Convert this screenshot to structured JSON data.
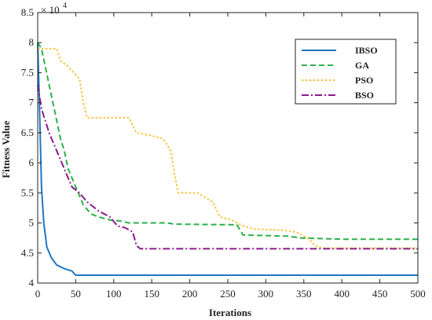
{
  "chart_data": {
    "type": "line",
    "xlabel": "Iterations",
    "ylabel": "Fitness Value",
    "y_multiplier_label": "× 10",
    "y_multiplier_exp": "4",
    "xlim": [
      0,
      500
    ],
    "ylim": [
      4,
      8.5
    ],
    "x_ticks": [
      0,
      50,
      100,
      150,
      200,
      250,
      300,
      350,
      400,
      450,
      500
    ],
    "x_tick_labels": [
      "0",
      "50",
      "100",
      "150",
      "200",
      "250",
      "300",
      "350",
      "400",
      "450",
      "500"
    ],
    "y_ticks": [
      4,
      4.5,
      5,
      5.5,
      6,
      6.5,
      7,
      7.5,
      8,
      8.5
    ],
    "y_tick_labels": [
      "4",
      "4.5",
      "5",
      "5.5",
      "6",
      "6.5",
      "7",
      "7.5",
      "8",
      "8.5"
    ],
    "legend_position": "top-right",
    "grid": false,
    "series": [
      {
        "name": "IBSO",
        "color": "#1f77c0",
        "dash": "solid",
        "points": [
          [
            0,
            8.0
          ],
          [
            2,
            7.1
          ],
          [
            5,
            5.6
          ],
          [
            8,
            5.0
          ],
          [
            12,
            4.6
          ],
          [
            18,
            4.42
          ],
          [
            25,
            4.3
          ],
          [
            35,
            4.24
          ],
          [
            45,
            4.2
          ],
          [
            50,
            4.13
          ],
          [
            500,
            4.13
          ]
        ]
      },
      {
        "name": "GA",
        "color": "#2bb14a",
        "dash": "dashed",
        "points": [
          [
            0,
            8.0
          ],
          [
            5,
            7.9
          ],
          [
            10,
            7.6
          ],
          [
            20,
            7.0
          ],
          [
            30,
            6.4
          ],
          [
            35,
            6.2
          ],
          [
            40,
            5.9
          ],
          [
            50,
            5.6
          ],
          [
            60,
            5.3
          ],
          [
            70,
            5.15
          ],
          [
            80,
            5.1
          ],
          [
            95,
            5.05
          ],
          [
            110,
            5.03
          ],
          [
            120,
            5.0
          ],
          [
            170,
            5.0
          ],
          [
            180,
            4.98
          ],
          [
            255,
            4.97
          ],
          [
            262,
            4.97
          ],
          [
            270,
            4.8
          ],
          [
            330,
            4.78
          ],
          [
            345,
            4.75
          ],
          [
            400,
            4.73
          ],
          [
            500,
            4.73
          ]
        ]
      },
      {
        "name": "PSO",
        "color": "#f5c542",
        "dash": "dotted",
        "points": [
          [
            0,
            7.9
          ],
          [
            25,
            7.9
          ],
          [
            30,
            7.7
          ],
          [
            40,
            7.6
          ],
          [
            55,
            7.4
          ],
          [
            60,
            7.0
          ],
          [
            65,
            6.75
          ],
          [
            120,
            6.75
          ],
          [
            130,
            6.5
          ],
          [
            150,
            6.45
          ],
          [
            165,
            6.4
          ],
          [
            175,
            6.2
          ],
          [
            180,
            5.8
          ],
          [
            185,
            5.5
          ],
          [
            210,
            5.5
          ],
          [
            230,
            5.35
          ],
          [
            240,
            5.1
          ],
          [
            255,
            5.05
          ],
          [
            270,
            4.95
          ],
          [
            285,
            4.9
          ],
          [
            320,
            4.88
          ],
          [
            340,
            4.85
          ],
          [
            355,
            4.75
          ],
          [
            365,
            4.62
          ],
          [
            375,
            4.58
          ],
          [
            500,
            4.58
          ]
        ]
      },
      {
        "name": "BSO",
        "color": "#8b1a8b",
        "dash": "dashdot",
        "points": [
          [
            0,
            7.3
          ],
          [
            5,
            6.9
          ],
          [
            15,
            6.5
          ],
          [
            25,
            6.2
          ],
          [
            35,
            5.9
          ],
          [
            45,
            5.6
          ],
          [
            55,
            5.5
          ],
          [
            65,
            5.35
          ],
          [
            80,
            5.2
          ],
          [
            95,
            5.1
          ],
          [
            105,
            4.95
          ],
          [
            115,
            4.92
          ],
          [
            125,
            4.85
          ],
          [
            130,
            4.62
          ],
          [
            135,
            4.57
          ],
          [
            500,
            4.57
          ]
        ]
      }
    ]
  }
}
